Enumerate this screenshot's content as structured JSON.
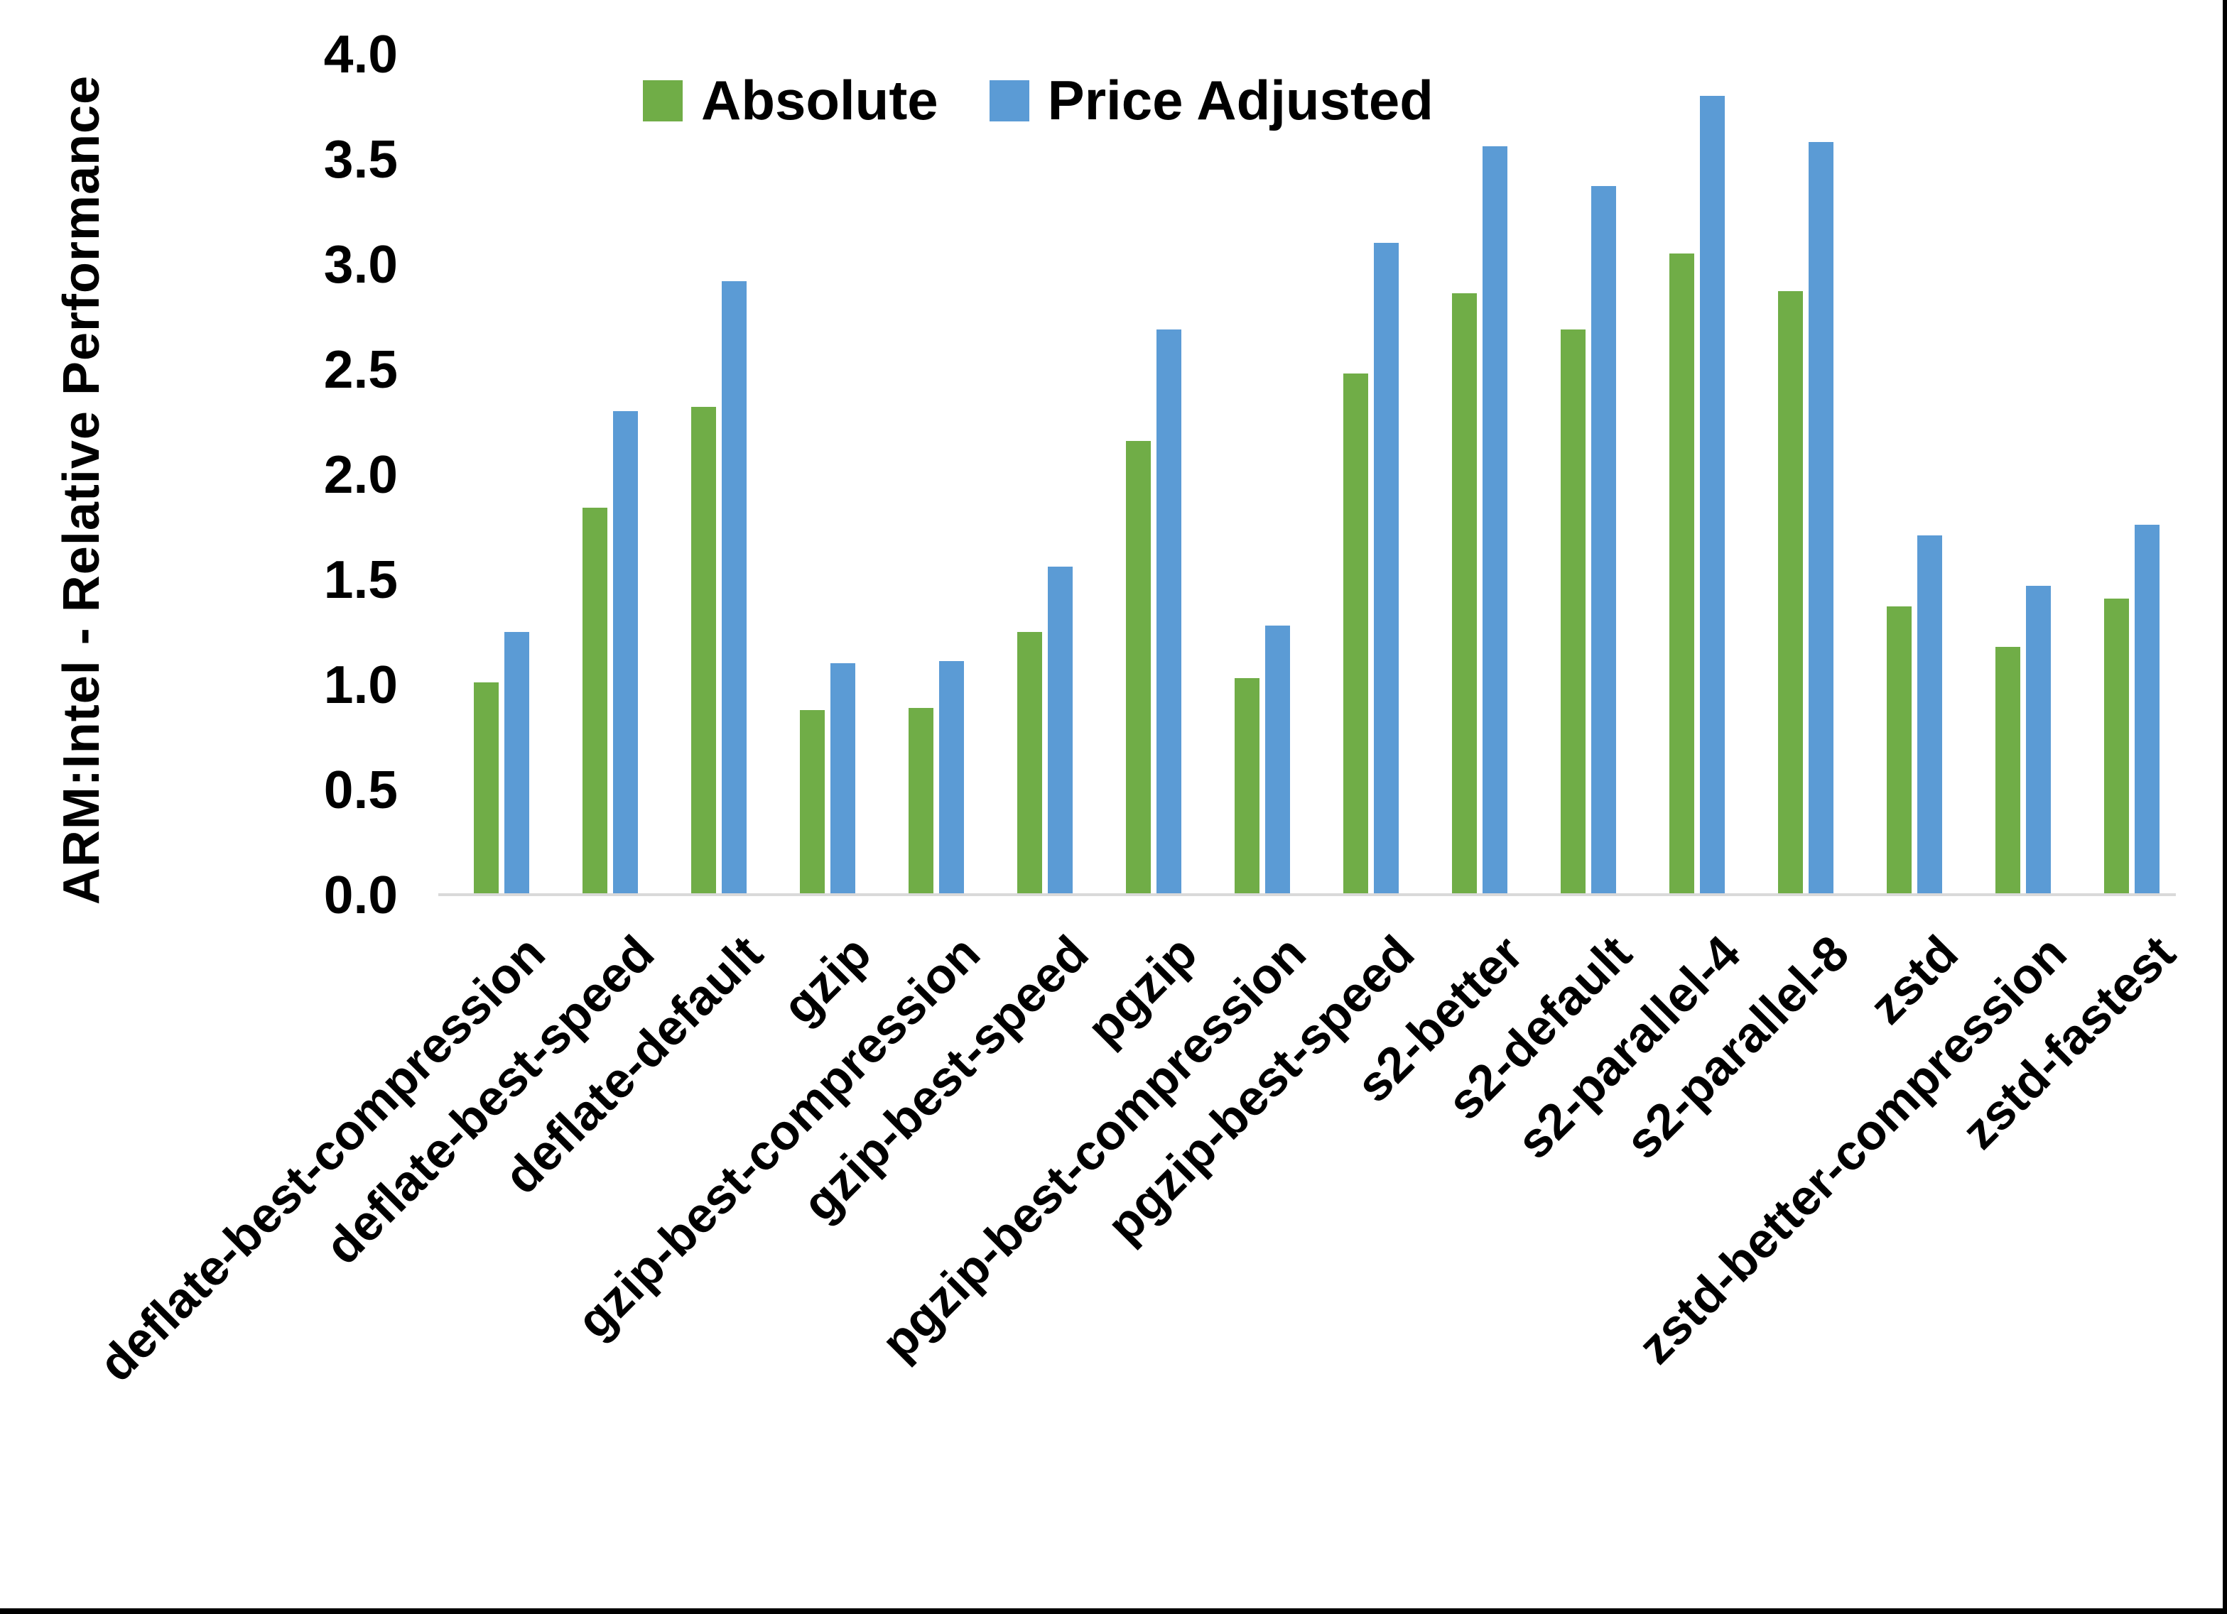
{
  "chart_data": {
    "type": "bar",
    "title": "",
    "xlabel": "",
    "ylabel": "ARM:Intel - Relative Performance",
    "ylim": [
      0.0,
      4.0
    ],
    "ytick_step": 0.5,
    "yticks": [
      "0.0",
      "0.5",
      "1.0",
      "1.5",
      "2.0",
      "2.5",
      "3.0",
      "3.5",
      "4.0"
    ],
    "grid": false,
    "legend_position": "top-center",
    "categories": [
      "deflate-best-compression",
      "deflate-best-speed",
      "deflate-default",
      "gzip",
      "gzip-best-compression",
      "gzip-best-speed",
      "pgzip",
      "pgzip-best-compression",
      "pgzip-best-speed",
      "s2-better",
      "s2-default",
      "s2-parallel-4",
      "s2-parallel-8",
      "zstd",
      "zstd-better-compression",
      "zstd-fastest"
    ],
    "series": [
      {
        "name": "Absolute",
        "color": "#70AD47",
        "values": [
          1.01,
          1.84,
          2.32,
          0.88,
          0.89,
          1.25,
          2.16,
          1.03,
          2.48,
          2.86,
          2.69,
          3.05,
          2.87,
          1.37,
          1.18,
          1.41
        ]
      },
      {
        "name": "Price Adjusted",
        "color": "#5B9BD5",
        "values": [
          1.25,
          2.3,
          2.92,
          1.1,
          1.11,
          1.56,
          2.69,
          1.28,
          3.1,
          3.56,
          3.37,
          3.8,
          3.58,
          1.71,
          1.47,
          1.76
        ]
      }
    ]
  },
  "colors": {
    "axis_line": "#D9D9D9",
    "text": "#000000",
    "frame": "#000000",
    "background": "#FFFFFF"
  }
}
